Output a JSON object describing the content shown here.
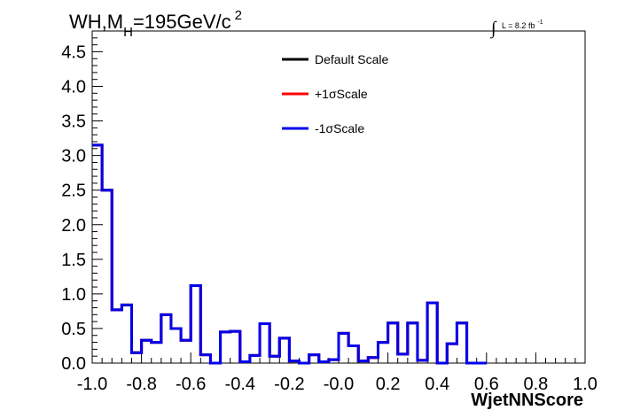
{
  "chart_data": {
    "type": "line",
    "style": "step-histogram",
    "title": {
      "main": "WH,M",
      "subscript": "H",
      "rest": "=195GeV/c",
      "superscript": "2"
    },
    "lumi": {
      "integral_sign": "∫",
      "text": "L = 8.2 fb",
      "superscript": "-1"
    },
    "xlabel": "WjetNNScore",
    "ylabel": "",
    "xlim": [
      -1.0,
      1.0
    ],
    "ylim": [
      0,
      4.8
    ],
    "x_tick_labels": [
      "-1.0",
      "-0.8",
      "-0.6",
      "-0.4",
      "-0.2",
      "-0.0",
      "0.2",
      "0.4",
      "0.6",
      "0.8",
      "1.0"
    ],
    "y_tick_labels": [
      "0.0",
      "0.5",
      "1.0",
      "1.5",
      "2.0",
      "2.5",
      "3.0",
      "3.5",
      "4.0",
      "4.5"
    ],
    "legend_position": "top-center",
    "bin_edges_start": -1.0,
    "bin_width": 0.04,
    "series": [
      {
        "name": "Default Scale",
        "color": "#000000",
        "values": [
          3.15,
          2.5,
          0.77,
          0.84,
          0.15,
          0.33,
          0.3,
          0.7,
          0.5,
          0.33,
          1.12,
          0.12,
          0.0,
          0.45,
          0.46,
          0.02,
          0.11,
          0.57,
          0.1,
          0.36,
          0.03,
          0.0,
          0.12,
          0.02,
          0.05,
          0.43,
          0.25,
          0.03,
          0.08,
          0.3,
          0.58,
          0.13,
          0.58,
          0.04,
          0.87,
          0.0,
          0.28,
          0.58,
          0.0,
          0.0
        ]
      },
      {
        "name": "+1σScale",
        "color": "#ff0000",
        "values": [
          3.15,
          2.5,
          0.77,
          0.84,
          0.15,
          0.33,
          0.3,
          0.7,
          0.5,
          0.33,
          1.12,
          0.12,
          0.0,
          0.45,
          0.46,
          0.02,
          0.11,
          0.57,
          0.1,
          0.36,
          0.03,
          0.0,
          0.12,
          0.02,
          0.05,
          0.43,
          0.25,
          0.03,
          0.08,
          0.3,
          0.58,
          0.13,
          0.58,
          0.04,
          0.87,
          0.0,
          0.28,
          0.58,
          0.0,
          0.0
        ]
      },
      {
        "name": "-1σScale",
        "color": "#0000ee",
        "values": [
          3.15,
          2.5,
          0.77,
          0.84,
          0.15,
          0.33,
          0.3,
          0.7,
          0.5,
          0.33,
          1.12,
          0.12,
          0.0,
          0.45,
          0.46,
          0.02,
          0.11,
          0.57,
          0.1,
          0.36,
          0.03,
          0.0,
          0.12,
          0.02,
          0.05,
          0.43,
          0.25,
          0.03,
          0.08,
          0.3,
          0.58,
          0.13,
          0.58,
          0.04,
          0.87,
          0.0,
          0.28,
          0.58,
          0.0,
          0.0
        ]
      }
    ]
  }
}
